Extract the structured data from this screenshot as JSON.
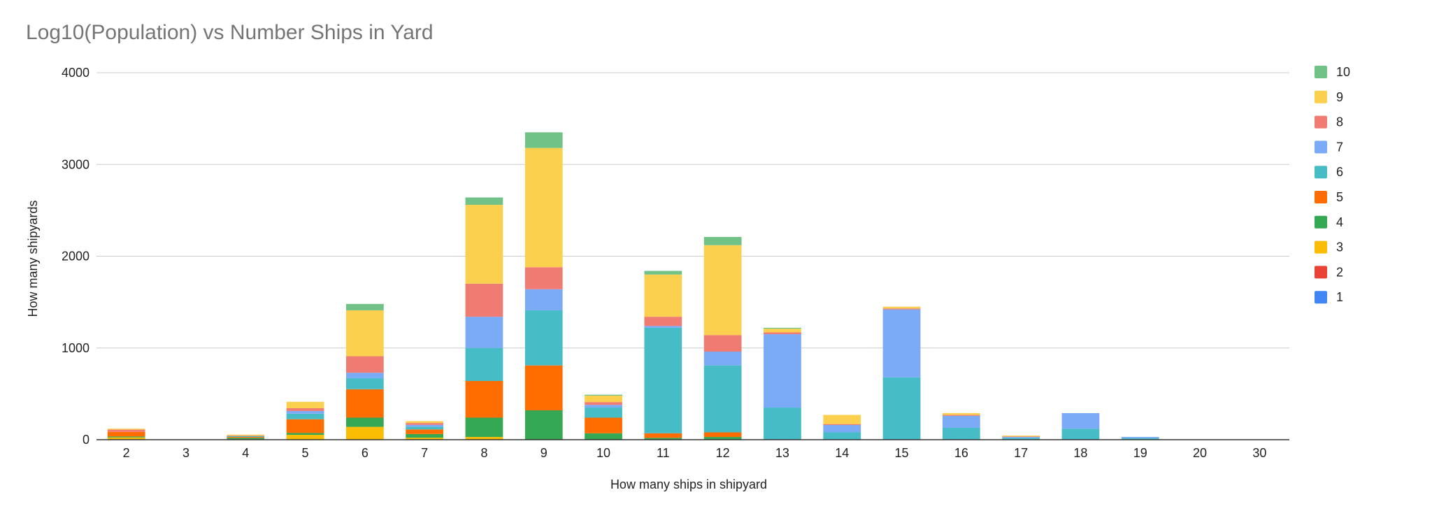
{
  "chart_data": {
    "type": "bar",
    "stacked": true,
    "title": "Log10(Population) vs Number Ships in Yard",
    "xlabel": "How many ships in shipyard",
    "ylabel": "How many shipyards",
    "ylim": [
      0,
      4000
    ],
    "yticks": [
      "0",
      "1000",
      "2000",
      "3000",
      "4000"
    ],
    "grid": true,
    "legend_position": "right",
    "categories": [
      "2",
      "3",
      "4",
      "5",
      "6",
      "7",
      "8",
      "9",
      "10",
      "11",
      "12",
      "13",
      "14",
      "15",
      "16",
      "17",
      "18",
      "19",
      "20",
      "30"
    ],
    "series": [
      {
        "name": "1",
        "color": "#4285F4",
        "values": [
          0,
          0,
          0,
          0,
          0,
          0,
          0,
          0,
          0,
          0,
          0,
          0,
          0,
          0,
          0,
          0,
          0,
          0,
          0,
          0
        ]
      },
      {
        "name": "2",
        "color": "#EA4335",
        "values": [
          5,
          0,
          0,
          3,
          0,
          2,
          0,
          0,
          0,
          0,
          0,
          0,
          0,
          0,
          0,
          0,
          0,
          0,
          0,
          0
        ]
      },
      {
        "name": "3",
        "color": "#FBBC04",
        "values": [
          20,
          0,
          5,
          50,
          140,
          20,
          30,
          0,
          0,
          0,
          0,
          0,
          0,
          0,
          0,
          0,
          0,
          0,
          0,
          0
        ]
      },
      {
        "name": "4",
        "color": "#34A853",
        "values": [
          10,
          0,
          15,
          20,
          100,
          40,
          210,
          320,
          70,
          20,
          30,
          0,
          0,
          0,
          0,
          0,
          0,
          0,
          0,
          0
        ]
      },
      {
        "name": "5",
        "color": "#FF6D01",
        "values": [
          50,
          0,
          10,
          150,
          310,
          50,
          400,
          490,
          170,
          50,
          50,
          0,
          0,
          0,
          0,
          0,
          0,
          0,
          0,
          0
        ]
      },
      {
        "name": "6",
        "color": "#46BDC6",
        "values": [
          0,
          0,
          10,
          60,
          120,
          30,
          360,
          600,
          110,
          1150,
          730,
          350,
          80,
          680,
          130,
          20,
          120,
          15,
          0,
          0
        ]
      },
      {
        "name": "7",
        "color": "#7BAAF7",
        "values": [
          0,
          0,
          0,
          30,
          60,
          20,
          340,
          230,
          30,
          20,
          150,
          800,
          80,
          740,
          130,
          10,
          170,
          15,
          0,
          0
        ]
      },
      {
        "name": "8",
        "color": "#F07B72",
        "values": [
          25,
          0,
          5,
          30,
          180,
          20,
          360,
          240,
          30,
          100,
          180,
          20,
          10,
          10,
          10,
          5,
          0,
          0,
          0,
          0
        ]
      },
      {
        "name": "9",
        "color": "#FCD04F",
        "values": [
          10,
          0,
          10,
          70,
          500,
          20,
          860,
          1300,
          70,
          460,
          980,
          40,
          100,
          20,
          20,
          10,
          0,
          0,
          0,
          0
        ]
      },
      {
        "name": "10",
        "color": "#71C287",
        "values": [
          0,
          0,
          0,
          0,
          70,
          0,
          80,
          170,
          10,
          40,
          90,
          10,
          0,
          0,
          0,
          0,
          0,
          0,
          0,
          0
        ]
      }
    ]
  }
}
